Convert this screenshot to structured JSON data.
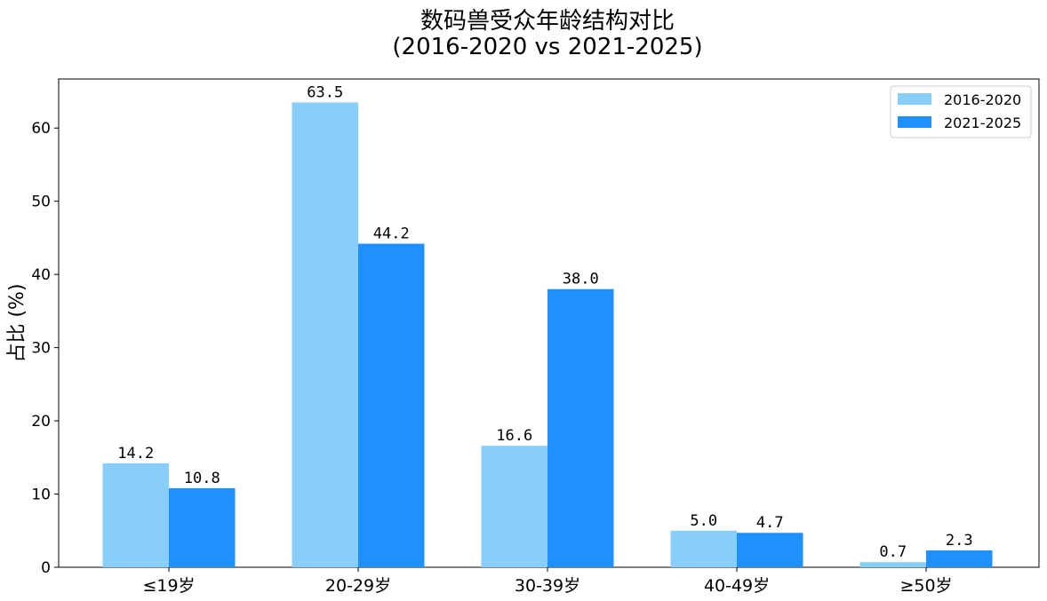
{
  "chart_data": {
    "type": "bar",
    "title_lines": [
      "数码兽受众年龄结构对比",
      "(2016-2020 vs 2021-2025)"
    ],
    "xlabel": "",
    "ylabel": "占比 (%)",
    "categories": [
      "≤19岁",
      "20-29岁",
      "30-39岁",
      "40-49岁",
      "≥50岁"
    ],
    "series": [
      {
        "name": "2016-2020",
        "values": [
          14.2,
          63.5,
          16.6,
          5.0,
          0.7
        ],
        "labels": [
          "14.2",
          "63.5",
          "16.6",
          "5.0",
          "0.7"
        ],
        "color": "#87CEFA"
      },
      {
        "name": "2021-2025",
        "values": [
          10.8,
          44.2,
          38.0,
          4.7,
          2.3
        ],
        "labels": [
          "10.8",
          "44.2",
          "38.0",
          "4.7",
          "2.3"
        ],
        "color": "#1E90FF"
      }
    ],
    "ylim": [
      0,
      66.7
    ],
    "yticks": [
      0,
      10,
      20,
      30,
      40,
      50,
      60
    ],
    "grid": false,
    "legend_position": "top-right"
  }
}
